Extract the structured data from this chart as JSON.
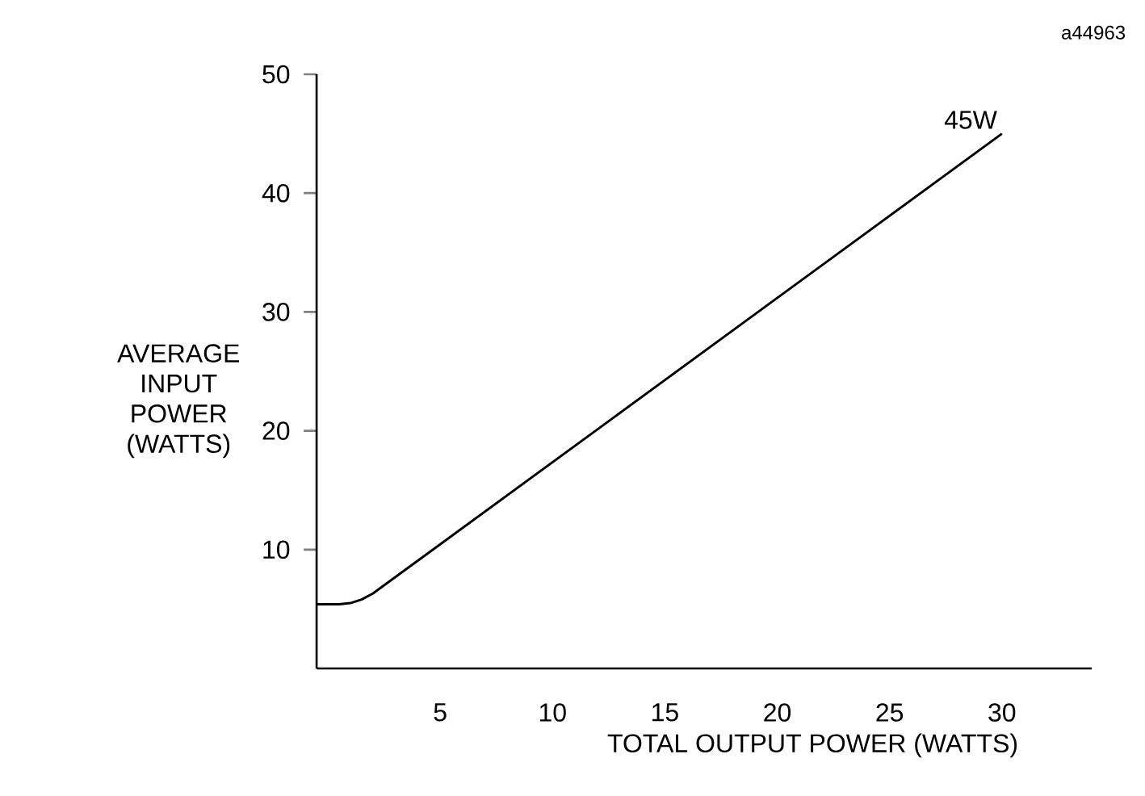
{
  "chart_data": {
    "type": "line",
    "xlabel": "TOTAL OUTPUT POWER (WATTS)",
    "ylabel": "AVERAGE INPUT POWER (WATTS)",
    "x": [
      -0.5,
      0.5,
      1,
      1.5,
      2,
      30
    ],
    "values": [
      5.4,
      5.4,
      5.5,
      5.8,
      6.3,
      45
    ],
    "color": "#000000",
    "xlim": [
      -0.5,
      34
    ],
    "ylim": [
      0,
      50
    ],
    "xticks": [
      5,
      10,
      15,
      20,
      25,
      30
    ],
    "yticks": [
      10,
      20,
      30,
      40,
      50
    ],
    "annotations": [
      "a44963",
      {
        "text": "45W",
        "x": 30,
        "y": 45
      }
    ]
  }
}
